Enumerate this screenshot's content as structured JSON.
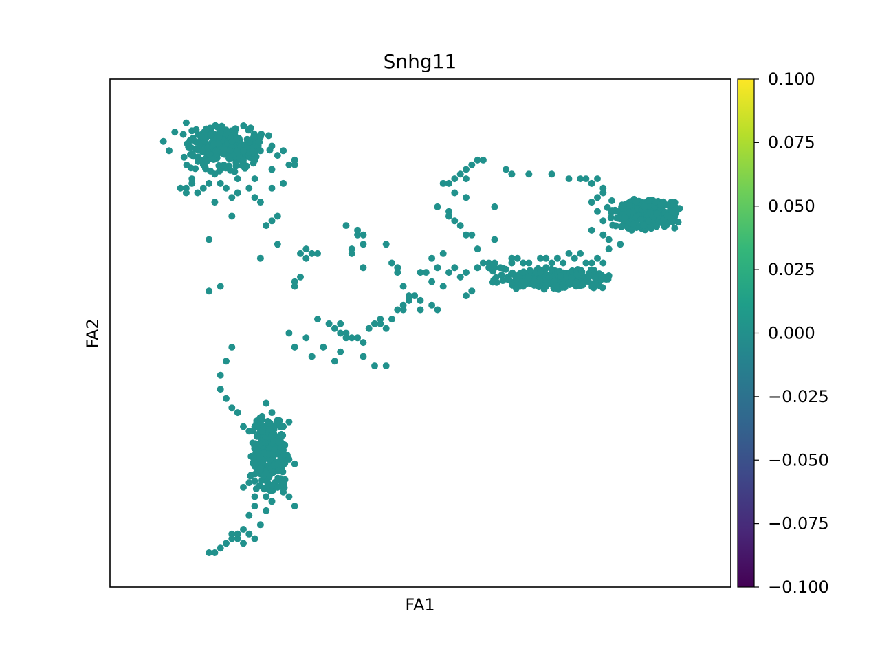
{
  "chart_data": {
    "type": "scatter",
    "title": "Snhg11",
    "xlabel": "FA1",
    "ylabel": "FA2",
    "xlim": [
      0,
      100
    ],
    "ylim": [
      0,
      100
    ],
    "x_ticks_shown": false,
    "y_ticks_shown": false,
    "grid": false,
    "point_color": "#21918c",
    "colorbar": {
      "colormap": "viridis",
      "vmin": -0.1,
      "vmax": 0.1,
      "ticks": [
        -0.1,
        -0.075,
        -0.05,
        -0.025,
        0.0,
        0.025,
        0.05,
        0.075,
        0.1
      ],
      "tick_labels": [
        "−0.100",
        "−0.075",
        "−0.050",
        "−0.025",
        "0.000",
        "0.025",
        "0.050",
        "0.075",
        "0.100"
      ],
      "colors": [
        "#440154",
        "#482878",
        "#3e4989",
        "#31688e",
        "#26828e",
        "#1f9e89",
        "#35b779",
        "#6ece58",
        "#b5de2b",
        "#fde725"
      ]
    },
    "clusters": [
      {
        "x": [
          8,
          24
        ],
        "y": [
          84,
          95
        ],
        "density": 1.0
      },
      {
        "x": [
          82,
          96
        ],
        "y": [
          72,
          79
        ],
        "density": 1.0
      },
      {
        "x": [
          62,
          84
        ],
        "y": [
          59,
          64
        ],
        "density": 1.0
      },
      {
        "x": [
          20,
          27
        ],
        "y": [
          15,
          33
        ],
        "density": 1.0
      }
    ],
    "points": [
      [
        5,
        91
      ],
      [
        7,
        93
      ],
      [
        6,
        89
      ],
      [
        9,
        95
      ],
      [
        12,
        86
      ],
      [
        15,
        93
      ],
      [
        14,
        84
      ],
      [
        10,
        83
      ],
      [
        17,
        91
      ],
      [
        19,
        89
      ],
      [
        22,
        92
      ],
      [
        25,
        88
      ],
      [
        28,
        87
      ],
      [
        24,
        85
      ],
      [
        27,
        86
      ],
      [
        21,
        83
      ],
      [
        13,
        82
      ],
      [
        9,
        81
      ],
      [
        15,
        82
      ],
      [
        18,
        83
      ],
      [
        16,
        81
      ],
      [
        11,
        80
      ],
      [
        8,
        81
      ],
      [
        26,
        82
      ],
      [
        9,
        80
      ],
      [
        10,
        82
      ],
      [
        12,
        81
      ],
      [
        19,
        87
      ],
      [
        22,
        89
      ],
      [
        24,
        90
      ],
      [
        26,
        89
      ],
      [
        28,
        86
      ],
      [
        20,
        81
      ],
      [
        18,
        80
      ],
      [
        17,
        79
      ],
      [
        22,
        78
      ],
      [
        24,
        81
      ],
      [
        14,
        78
      ],
      [
        17,
        75
      ],
      [
        21,
        79
      ],
      [
        22,
        66
      ],
      [
        23,
        73
      ],
      [
        24,
        74
      ],
      [
        25,
        69
      ],
      [
        25,
        75
      ],
      [
        13,
        70
      ],
      [
        13,
        59
      ],
      [
        28,
        60
      ],
      [
        28,
        61
      ],
      [
        29,
        62
      ],
      [
        29,
        67
      ],
      [
        30,
        68
      ],
      [
        30,
        66
      ],
      [
        31,
        67
      ],
      [
        32,
        67
      ],
      [
        37,
        73
      ],
      [
        38,
        68
      ],
      [
        38,
        67
      ],
      [
        39,
        71
      ],
      [
        39,
        72
      ],
      [
        40,
        69
      ],
      [
        40,
        64
      ],
      [
        40,
        71
      ],
      [
        44,
        69
      ],
      [
        45,
        65
      ],
      [
        46,
        63
      ],
      [
        46,
        64
      ],
      [
        47,
        60
      ],
      [
        48,
        57
      ],
      [
        48,
        58
      ],
      [
        49,
        58
      ],
      [
        50,
        55
      ],
      [
        50,
        57
      ],
      [
        52,
        66
      ],
      [
        51,
        63
      ],
      [
        50,
        63
      ],
      [
        52,
        61
      ],
      [
        53,
        64
      ],
      [
        54,
        60
      ],
      [
        55,
        63
      ],
      [
        56,
        64
      ],
      [
        54,
        67
      ],
      [
        34,
        52
      ],
      [
        35,
        51
      ],
      [
        36,
        50
      ],
      [
        37,
        50
      ],
      [
        38,
        49
      ],
      [
        39,
        49
      ],
      [
        40,
        48
      ],
      [
        41,
        51
      ],
      [
        42,
        52
      ],
      [
        43,
        52
      ],
      [
        43,
        53
      ],
      [
        45,
        53
      ],
      [
        46,
        55
      ],
      [
        47,
        56
      ],
      [
        47,
        55
      ],
      [
        44,
        51
      ],
      [
        36,
        52
      ],
      [
        32,
        53
      ],
      [
        27,
        50
      ],
      [
        28,
        47
      ],
      [
        30,
        49
      ],
      [
        31,
        45
      ],
      [
        33,
        47
      ],
      [
        35,
        44
      ],
      [
        36,
        46
      ],
      [
        37,
        49
      ],
      [
        40,
        45
      ],
      [
        42,
        43
      ],
      [
        44,
        43
      ],
      [
        53,
        77
      ],
      [
        54,
        82
      ],
      [
        55,
        82
      ],
      [
        56,
        80
      ],
      [
        56,
        83
      ],
      [
        57,
        84
      ],
      [
        58,
        85
      ],
      [
        58,
        83
      ],
      [
        59,
        86
      ],
      [
        58,
        79
      ],
      [
        55,
        76
      ],
      [
        55,
        75
      ],
      [
        56,
        74
      ],
      [
        57,
        73
      ],
      [
        58,
        71
      ],
      [
        59,
        71
      ],
      [
        60,
        68
      ],
      [
        60,
        87
      ],
      [
        61,
        87
      ],
      [
        63,
        70
      ],
      [
        63,
        65
      ],
      [
        62,
        64
      ],
      [
        66,
        66
      ],
      [
        57,
        62
      ],
      [
        58,
        63
      ],
      [
        60,
        64
      ],
      [
        61,
        65
      ],
      [
        62,
        65
      ],
      [
        63,
        64
      ],
      [
        64,
        64
      ],
      [
        52,
        56
      ],
      [
        53,
        55
      ],
      [
        58,
        58
      ],
      [
        59,
        59
      ],
      [
        63,
        77
      ],
      [
        65,
        85
      ],
      [
        66,
        84
      ],
      [
        69,
        84
      ],
      [
        73,
        84
      ],
      [
        76,
        83
      ],
      [
        78,
        83
      ],
      [
        79,
        83
      ],
      [
        80,
        82
      ],
      [
        81,
        83
      ],
      [
        82,
        81
      ],
      [
        81,
        79
      ],
      [
        80,
        78
      ],
      [
        82,
        80
      ],
      [
        81,
        76
      ],
      [
        82,
        74
      ],
      [
        82,
        71
      ],
      [
        83,
        70
      ],
      [
        83,
        68
      ],
      [
        85,
        69
      ],
      [
        87,
        72
      ],
      [
        80,
        72
      ],
      [
        69,
        62
      ],
      [
        70,
        61
      ],
      [
        71,
        63
      ],
      [
        72,
        64
      ],
      [
        73,
        65
      ],
      [
        74,
        66
      ],
      [
        75,
        65
      ],
      [
        76,
        67
      ],
      [
        77,
        66
      ],
      [
        78,
        67
      ],
      [
        79,
        65
      ],
      [
        80,
        65
      ],
      [
        81,
        66
      ],
      [
        82,
        65
      ],
      [
        69,
        65
      ],
      [
        71,
        66
      ],
      [
        72,
        66
      ],
      [
        66,
        65
      ],
      [
        67,
        66
      ],
      [
        68,
        65
      ],
      [
        15,
        60
      ],
      [
        17,
        47
      ],
      [
        16,
        44
      ],
      [
        15,
        41
      ],
      [
        15,
        38
      ],
      [
        16,
        36
      ],
      [
        17,
        34
      ],
      [
        18,
        33
      ],
      [
        19,
        30
      ],
      [
        20,
        29
      ],
      [
        21,
        30
      ],
      [
        22,
        31
      ],
      [
        23,
        35
      ],
      [
        24,
        33
      ],
      [
        25,
        31
      ],
      [
        26,
        30
      ],
      [
        27,
        31
      ],
      [
        24,
        28
      ],
      [
        26,
        25
      ],
      [
        27,
        23
      ],
      [
        28,
        22
      ],
      [
        25,
        22
      ],
      [
        23,
        20
      ],
      [
        22,
        21
      ],
      [
        20,
        18
      ],
      [
        19,
        17
      ],
      [
        21,
        15
      ],
      [
        23,
        15
      ],
      [
        24,
        14
      ],
      [
        25,
        17
      ],
      [
        26,
        16
      ],
      [
        27,
        15
      ],
      [
        28,
        13
      ],
      [
        23,
        12
      ],
      [
        20,
        11
      ],
      [
        21,
        13
      ],
      [
        22,
        9
      ],
      [
        19,
        8
      ],
      [
        17,
        7
      ],
      [
        18,
        6
      ],
      [
        19,
        5
      ],
      [
        16,
        5
      ],
      [
        15,
        4
      ],
      [
        14,
        3
      ],
      [
        13,
        3
      ],
      [
        17,
        6
      ],
      [
        18,
        7
      ],
      [
        20,
        7
      ],
      [
        21,
        6
      ]
    ]
  }
}
